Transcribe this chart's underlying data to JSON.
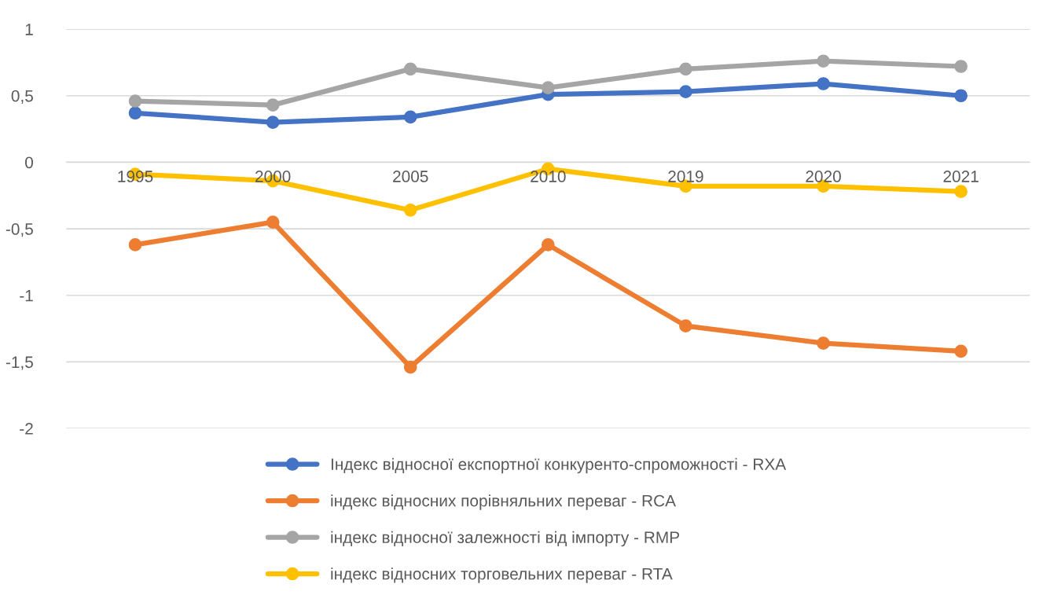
{
  "chart_data": {
    "type": "line",
    "categories": [
      "1995",
      "2000",
      "2005",
      "2010",
      "2019",
      "2020",
      "2021"
    ],
    "series": [
      {
        "name": "Індекс відносної експортної конкуренто-спроможності - RXA",
        "color": "#4472c4",
        "values": [
          0.37,
          0.3,
          0.34,
          0.51,
          0.53,
          0.59,
          0.5
        ]
      },
      {
        "name": "індекс відносних порівняльних переваг - RCA",
        "color": "#ed7d31",
        "values": [
          -0.62,
          -0.45,
          -1.54,
          -0.62,
          -1.23,
          -1.36,
          -1.42
        ]
      },
      {
        "name": "індекс відносної залежності від імпорту - RMP",
        "color": "#a5a5a5",
        "values": [
          0.46,
          0.43,
          0.7,
          0.56,
          0.7,
          0.76,
          0.72
        ]
      },
      {
        "name": "індекс відносних торговельних переваг - RTA",
        "color": "#ffc000",
        "values": [
          -0.09,
          -0.14,
          -0.36,
          -0.05,
          -0.18,
          -0.18,
          -0.22
        ]
      }
    ],
    "ylim": [
      -2,
      1
    ],
    "yticks": [
      -2,
      {
        "value": -1.5,
        "label": "-1,5"
      },
      -1,
      {
        "value": -0.5,
        "label": "-0,5"
      },
      0,
      {
        "value": 0.5,
        "label": "0,5"
      },
      1
    ],
    "grid": "y",
    "legend": "bottom",
    "marker": "circle",
    "line_style": "solid"
  }
}
